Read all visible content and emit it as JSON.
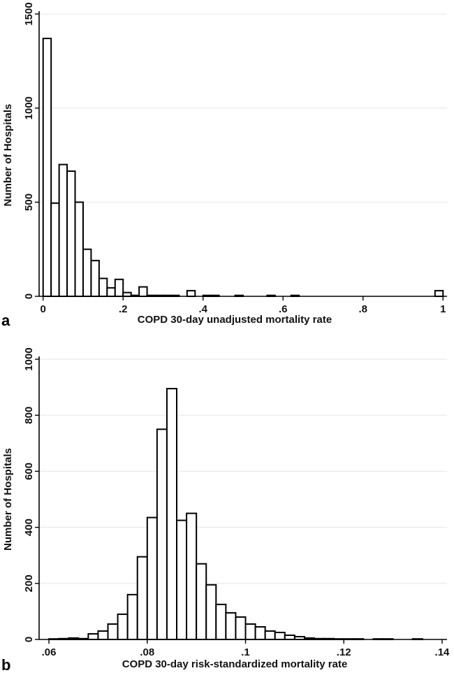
{
  "chart_data": [
    {
      "panel_label": "a",
      "type": "bar",
      "subtype": "histogram",
      "xlabel": "COPD 30-day unadjusted mortality rate",
      "ylabel": "Number of Hospitals",
      "xlim": [
        -0.01,
        1.01
      ],
      "ylim": [
        0,
        1500
      ],
      "xticks": [
        0,
        0.2,
        0.4,
        0.6,
        0.8,
        1
      ],
      "xtick_labels": [
        "0",
        ".2",
        ".4",
        ".6",
        ".8",
        "1"
      ],
      "yticks": [
        0,
        500,
        1000,
        1500
      ],
      "ytick_labels": [
        "0",
        "500",
        "1000",
        "1500"
      ],
      "grid": "horizontal",
      "bin_width": 0.02,
      "bins": [
        {
          "x": 0.0,
          "count": 1370
        },
        {
          "x": 0.02,
          "count": 495
        },
        {
          "x": 0.04,
          "count": 700
        },
        {
          "x": 0.06,
          "count": 665
        },
        {
          "x": 0.08,
          "count": 500
        },
        {
          "x": 0.1,
          "count": 250
        },
        {
          "x": 0.12,
          "count": 190
        },
        {
          "x": 0.14,
          "count": 95
        },
        {
          "x": 0.16,
          "count": 45
        },
        {
          "x": 0.18,
          "count": 90
        },
        {
          "x": 0.2,
          "count": 20
        },
        {
          "x": 0.22,
          "count": 5
        },
        {
          "x": 0.24,
          "count": 50
        },
        {
          "x": 0.26,
          "count": 5
        },
        {
          "x": 0.28,
          "count": 5
        },
        {
          "x": 0.3,
          "count": 5
        },
        {
          "x": 0.32,
          "count": 5
        },
        {
          "x": 0.36,
          "count": 30
        },
        {
          "x": 0.4,
          "count": 5
        },
        {
          "x": 0.42,
          "count": 5
        },
        {
          "x": 0.48,
          "count": 5
        },
        {
          "x": 0.56,
          "count": 5
        },
        {
          "x": 0.62,
          "count": 5
        },
        {
          "x": 0.98,
          "count": 30
        }
      ]
    },
    {
      "panel_label": "b",
      "type": "bar",
      "subtype": "histogram",
      "xlabel": "COPD 30-day risk-standardized mortality rate",
      "ylabel": "Number of Hospitals",
      "xlim": [
        0.058,
        0.141
      ],
      "ylim": [
        0,
        1000
      ],
      "xticks": [
        0.06,
        0.08,
        0.1,
        0.12,
        0.14
      ],
      "xtick_labels": [
        ".06",
        ".08",
        ".1",
        ".12",
        ".14"
      ],
      "yticks": [
        0,
        200,
        400,
        600,
        800,
        1000
      ],
      "ytick_labels": [
        "0",
        "200",
        "400",
        "600",
        "800",
        "1000"
      ],
      "grid": "horizontal",
      "bin_width": 0.002,
      "bins": [
        {
          "x": 0.06,
          "count": 2
        },
        {
          "x": 0.062,
          "count": 3
        },
        {
          "x": 0.064,
          "count": 5
        },
        {
          "x": 0.066,
          "count": 3
        },
        {
          "x": 0.068,
          "count": 20
        },
        {
          "x": 0.07,
          "count": 30
        },
        {
          "x": 0.072,
          "count": 55
        },
        {
          "x": 0.074,
          "count": 90
        },
        {
          "x": 0.076,
          "count": 160
        },
        {
          "x": 0.078,
          "count": 295
        },
        {
          "x": 0.08,
          "count": 435
        },
        {
          "x": 0.082,
          "count": 750
        },
        {
          "x": 0.084,
          "count": 895
        },
        {
          "x": 0.086,
          "count": 425
        },
        {
          "x": 0.088,
          "count": 450
        },
        {
          "x": 0.09,
          "count": 270
        },
        {
          "x": 0.092,
          "count": 195
        },
        {
          "x": 0.094,
          "count": 125
        },
        {
          "x": 0.096,
          "count": 95
        },
        {
          "x": 0.098,
          "count": 80
        },
        {
          "x": 0.1,
          "count": 55
        },
        {
          "x": 0.102,
          "count": 45
        },
        {
          "x": 0.104,
          "count": 30
        },
        {
          "x": 0.106,
          "count": 25
        },
        {
          "x": 0.108,
          "count": 15
        },
        {
          "x": 0.11,
          "count": 10
        },
        {
          "x": 0.112,
          "count": 5
        },
        {
          "x": 0.114,
          "count": 3
        },
        {
          "x": 0.116,
          "count": 3
        },
        {
          "x": 0.118,
          "count": 2
        },
        {
          "x": 0.12,
          "count": 2
        },
        {
          "x": 0.122,
          "count": 2
        },
        {
          "x": 0.126,
          "count": 2
        },
        {
          "x": 0.128,
          "count": 2
        },
        {
          "x": 0.134,
          "count": 2
        }
      ]
    }
  ]
}
